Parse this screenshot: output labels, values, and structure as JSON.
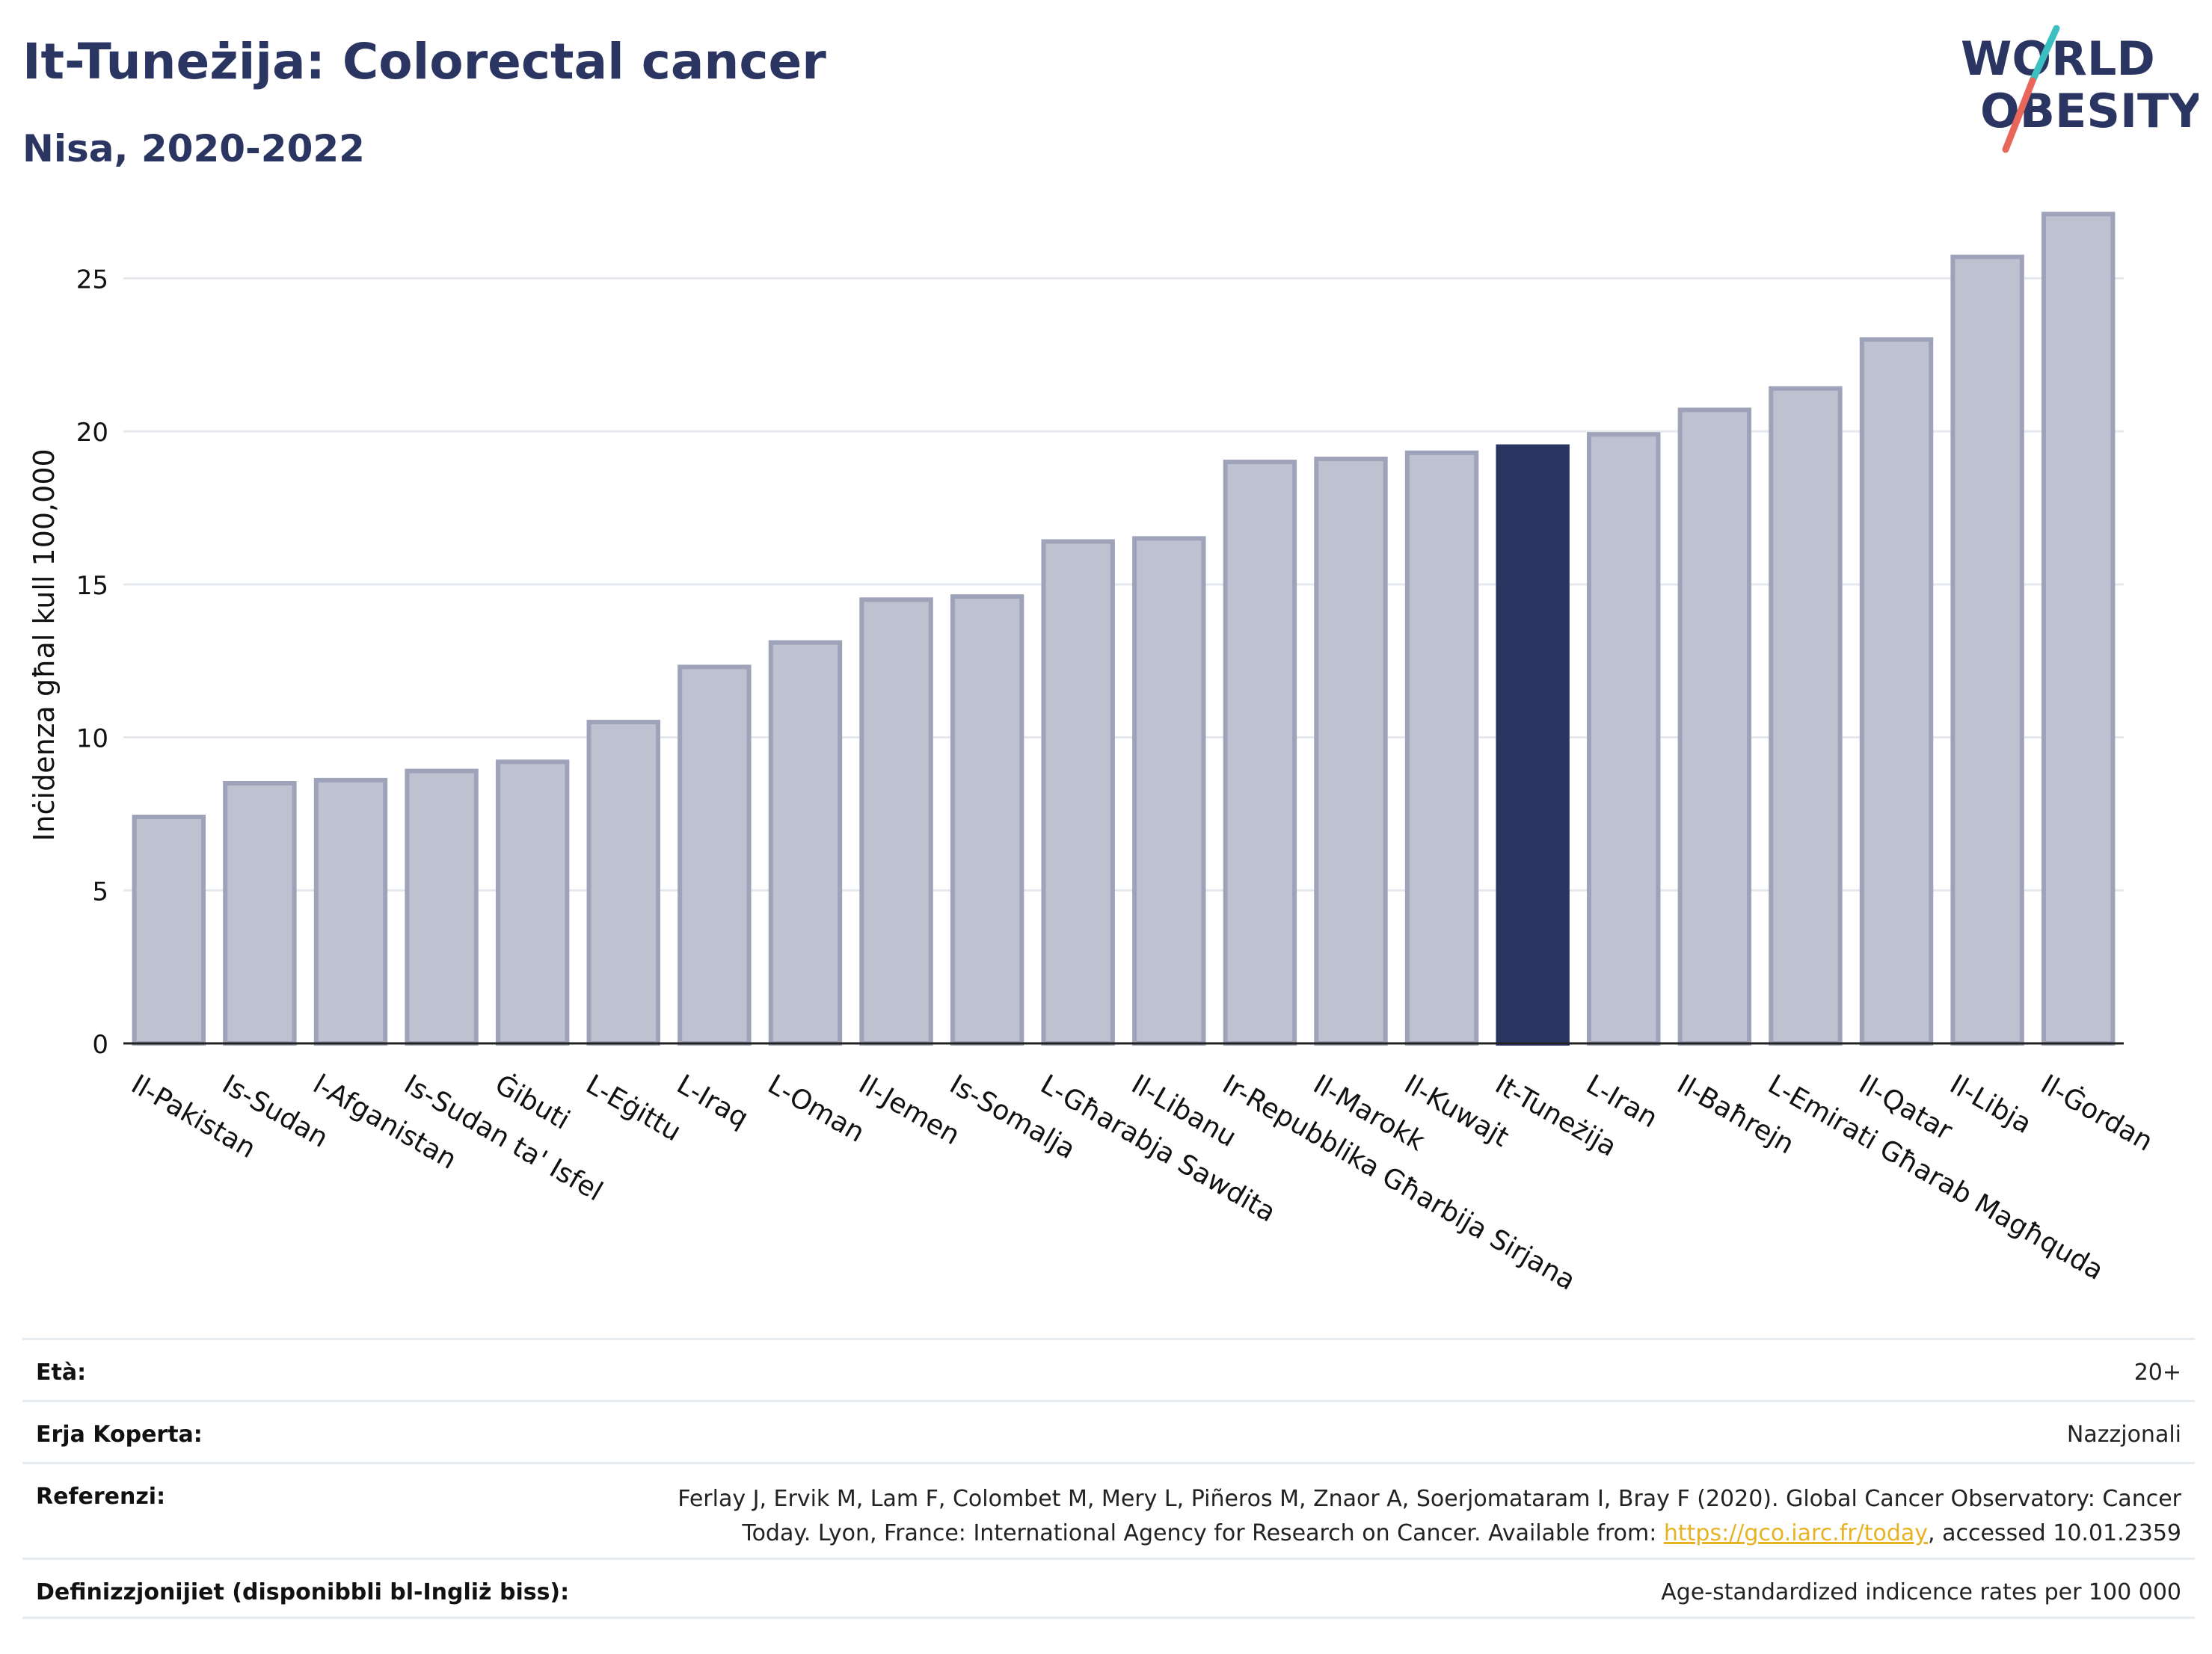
{
  "header": {
    "title": "It-Tuneżija: Colorectal cancer",
    "subtitle": "Nisa, 2020-2022"
  },
  "logo": {
    "line1": "WORLD",
    "line2": "OBESITY",
    "text_color": "#2b3562",
    "accent_teal": "#3bbfc1",
    "accent_red": "#e8675a"
  },
  "colors": {
    "bar_default": "#bec1d0",
    "bar_default_stroke": "#9ea3b9",
    "bar_highlight": "#2b3562",
    "grid": "#e5e9ee"
  },
  "chart_data": {
    "type": "bar",
    "title": "It-Tuneżija: Colorectal cancer",
    "subtitle": "Nisa, 2020-2022",
    "xlabel": "",
    "ylabel": "Inċidenza għal kull 100,000",
    "ylim": [
      0,
      27.5
    ],
    "yticks": [
      0,
      5,
      10,
      15,
      20,
      25
    ],
    "grid": true,
    "highlight": "It-Tuneżija",
    "categories": [
      "Il-Pakistan",
      "Is-Sudan",
      "l-Afganistan",
      "Is-Sudan ta' Isfel",
      "Ġibuti",
      "L-Eġittu",
      "L-Iraq",
      "L-Oman",
      "Il-Jemen",
      "Is-Somalja",
      "L-Għarabja Sawdita",
      "Il-Libanu",
      "Ir-Repubblika Għarbija Sirjana",
      "Il-Marokk",
      "Il-Kuwajt",
      "It-Tuneżija",
      "L-Iran",
      "Il-Baħrejn",
      "L-Emirati Għarab Magħquda",
      "Il-Qatar",
      "Il-Libja",
      "Il-Ġordan"
    ],
    "values": [
      7.4,
      8.5,
      8.6,
      8.9,
      9.2,
      10.5,
      12.3,
      13.1,
      14.5,
      14.6,
      16.4,
      16.5,
      19.0,
      19.1,
      19.3,
      19.5,
      19.9,
      20.7,
      21.4,
      23.0,
      25.7,
      27.1
    ]
  },
  "info": {
    "age_label": "Età:",
    "age_value": "20+",
    "area_label": "Erja Koperta:",
    "area_value": "Nazzjonali",
    "ref_label": "Referenzi:",
    "ref_text_1": "Ferlay J, Ervik M, Lam F, Colombet M, Mery L, Piñeros M, Znaor A, Soerjomataram I, Bray F (2020). Global Cancer Observatory: Cancer",
    "ref_text_2": "Today. Lyon, France: International Agency for Research on Cancer. Available from: ",
    "ref_link": "https://gco.iarc.fr/today",
    "ref_text_3": ", accessed 10.01.2359",
    "def_label": "Definizzjonijiet (disponibbli bl-Ingliż biss):",
    "def_value": "Age-standardized indicence rates per 100 000"
  }
}
